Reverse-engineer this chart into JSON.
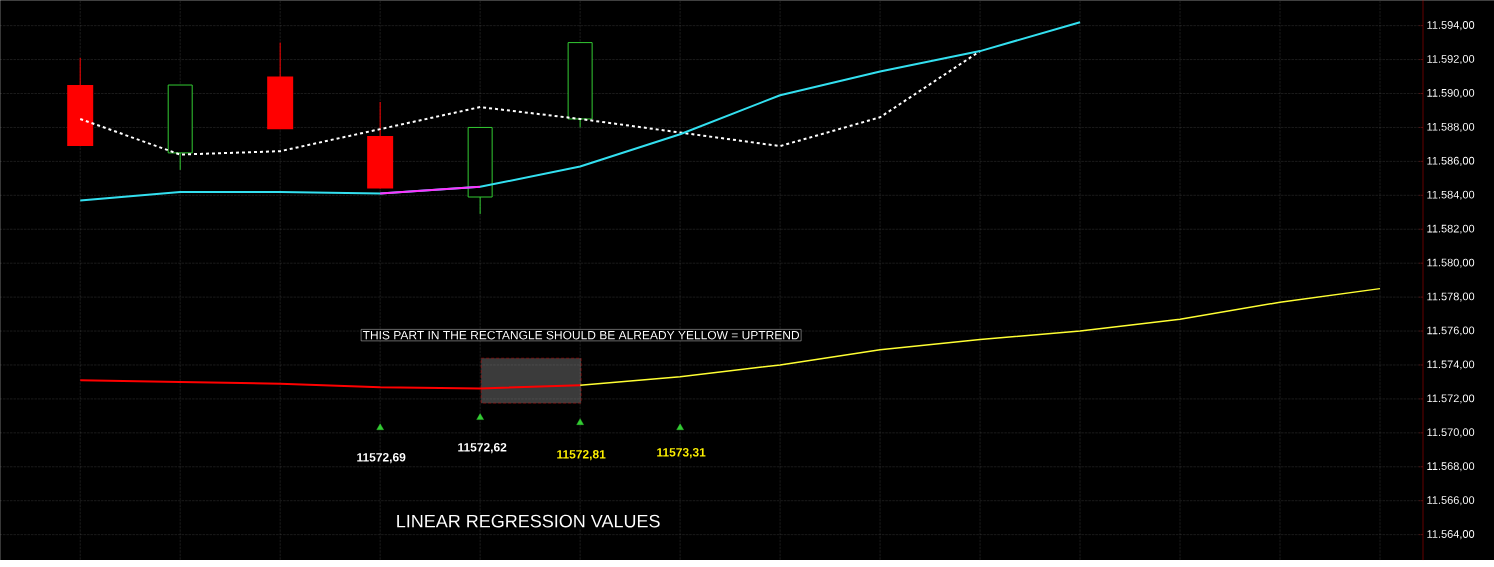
{
  "chart_data": {
    "type": "candlestick",
    "categories": [
      null,
      null,
      null,
      null,
      null,
      null,
      null,
      null,
      null,
      null,
      null,
      null,
      null,
      null
    ],
    "ylim": [
      11562.5,
      11595.5
    ],
    "yticks": [
      {
        "value": 11564,
        "label": "11.564,00"
      },
      {
        "value": 11566,
        "label": "11.566,00"
      },
      {
        "value": 11568,
        "label": "11.568,00"
      },
      {
        "value": 11570,
        "label": "11.570,00"
      },
      {
        "value": 11572,
        "label": "11.572,00"
      },
      {
        "value": 11574,
        "label": "11.574,00"
      },
      {
        "value": 11576,
        "label": "11.576,00"
      },
      {
        "value": 11578,
        "label": "11.578,00"
      },
      {
        "value": 11580,
        "label": "11.580,00"
      },
      {
        "value": 11582,
        "label": "11.582,00"
      },
      {
        "value": 11584,
        "label": "11.584,00"
      },
      {
        "value": 11586,
        "label": "11.586,00"
      },
      {
        "value": 11588,
        "label": "11.588,00"
      },
      {
        "value": 11590,
        "label": "11.590,00"
      },
      {
        "value": 11592,
        "label": "11.592,00"
      },
      {
        "value": 11594,
        "label": "11.594,00"
      }
    ],
    "grid": true,
    "series": [
      {
        "ohlc": [
          [
            11590.5,
            11592.1,
            11586.9,
            11586.9
          ],
          [
            11586.5,
            11590.5,
            11585.5,
            11590.5
          ],
          [
            11591.0,
            11593.0,
            11587.9,
            11587.9
          ],
          [
            11587.5,
            11589.5,
            11584.4,
            11584.4
          ],
          [
            11583.9,
            11588.0,
            11582.9,
            11588.0
          ],
          [
            11588.5,
            11593.0,
            11588.0,
            11593.0
          ],
          null,
          null,
          null,
          null,
          null,
          null,
          null,
          null
        ],
        "colors": [
          "#ff0000",
          "#33cc33",
          "#ff0000",
          "#ff0000",
          "#33cc33",
          "#33cc33",
          null,
          null,
          null,
          null,
          null,
          null,
          null,
          null
        ]
      },
      {
        "type": "line",
        "color": "#ffffff",
        "line_style": "dashed",
        "values": [
          11588.5,
          11586.4,
          11586.6,
          11587.9,
          11589.2,
          11588.5,
          11587.7,
          11586.9,
          11588.6,
          11592.5,
          null,
          null,
          null,
          null
        ]
      },
      {
        "type": "line",
        "color": "#33e0f0",
        "values": [
          11583.7,
          11584.2,
          11584.2,
          11584.1,
          11584.5,
          11585.7,
          11587.6,
          11589.9,
          11591.3,
          11592.5,
          11594.2,
          null,
          null,
          null
        ]
      },
      {
        "type": "line",
        "color": "#ff33ff",
        "values": [
          null,
          null,
          null,
          11584.1,
          11584.5,
          null,
          null,
          null,
          null,
          null,
          null,
          null,
          null,
          null
        ]
      },
      {
        "type": "line",
        "color": "#ffff33",
        "values": [
          null,
          null,
          null,
          null,
          null,
          11572.81,
          11573.31,
          11574.0,
          11574.9,
          11575.5,
          11576.0,
          11576.7,
          11577.7,
          11578.5
        ]
      },
      {
        "type": "line",
        "color": "#ff0000",
        "values": [
          11573.1,
          11573.0,
          11572.9,
          11572.69,
          11572.62,
          11572.81,
          null,
          null,
          null,
          null,
          null,
          null,
          null,
          null
        ]
      },
      {
        "type": "scatter",
        "color": "#33cc33",
        "marker": "triangle",
        "values": [
          null,
          null,
          null,
          11570.3,
          11570.9,
          11570.6,
          11570.3,
          null,
          null,
          null,
          null,
          null,
          null,
          null
        ]
      }
    ],
    "annotations": [
      "THIS PART IN THE RECTANGLE SHOULD BE ALREADY YELLOW = UPTREND",
      "LINEAR REGRESSION VALUES",
      "11572,69",
      "11572,62",
      "11572,81",
      "11573,31"
    ]
  }
}
